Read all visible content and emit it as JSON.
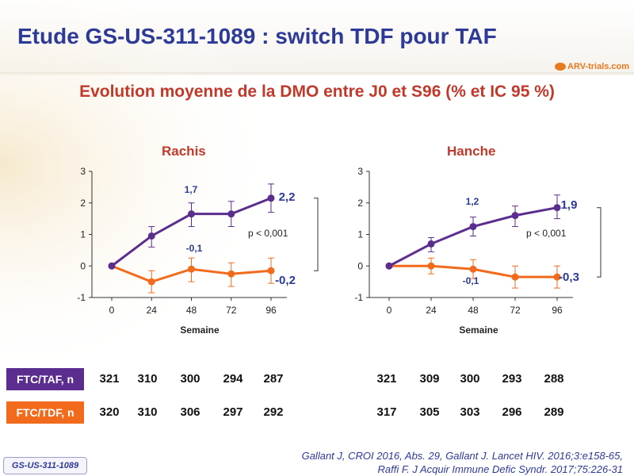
{
  "header": {
    "title": "Etude GS-US-311-1089 : switch TDF pour TAF",
    "logo_text": "ARV-trials.com",
    "subtitle": "Evolution moyenne de la DMO entre J0 et S96 (% et IC 95 %)"
  },
  "colors": {
    "taf": "#5b2d8e",
    "tdf": "#f26b1d",
    "title": "#2e3a97",
    "accent": "#c0392b"
  },
  "chart_data": [
    {
      "type": "line",
      "title": "Rachis",
      "xlabel": "Semaine",
      "ylabel": "",
      "x": [
        0,
        24,
        48,
        72,
        96
      ],
      "ylim": [
        -1,
        3
      ],
      "yticks": [
        -1,
        0,
        1,
        2,
        3
      ],
      "series": [
        {
          "name": "FTC/TAF",
          "color": "#5b2d8e",
          "values": [
            0,
            0.95,
            1.65,
            1.65,
            2.15
          ],
          "ci_low": [
            0,
            0.6,
            1.25,
            1.25,
            1.7
          ],
          "ci_high": [
            0,
            1.25,
            2.0,
            2.05,
            2.6
          ]
        },
        {
          "name": "FTC/TDF",
          "color": "#f26b1d",
          "values": [
            0,
            -0.5,
            -0.1,
            -0.25,
            -0.15
          ],
          "ci_low": [
            0,
            -0.85,
            -0.5,
            -0.65,
            -0.55
          ],
          "ci_high": [
            0,
            -0.15,
            0.25,
            0.1,
            0.25
          ]
        }
      ],
      "annotations": {
        "point_label_taf": "1,7",
        "point_label_tdf": "-0,1",
        "end_label_taf": "2,2",
        "end_label_tdf": "-0,2",
        "pvalue": "p < 0,001"
      }
    },
    {
      "type": "line",
      "title": "Hanche",
      "xlabel": "Semaine",
      "ylabel": "",
      "x": [
        0,
        24,
        48,
        72,
        96
      ],
      "ylim": [
        -1,
        3
      ],
      "yticks": [
        -1,
        0,
        1,
        2,
        3
      ],
      "series": [
        {
          "name": "FTC/TAF",
          "color": "#5b2d8e",
          "values": [
            0,
            0.7,
            1.25,
            1.6,
            1.85
          ],
          "ci_low": [
            0,
            0.45,
            0.95,
            1.25,
            1.5
          ],
          "ci_high": [
            0,
            0.9,
            1.55,
            1.9,
            2.25
          ]
        },
        {
          "name": "FTC/TDF",
          "color": "#f26b1d",
          "values": [
            0,
            0,
            -0.1,
            -0.35,
            -0.35
          ],
          "ci_low": [
            0,
            -0.25,
            -0.4,
            -0.7,
            -0.7
          ],
          "ci_high": [
            0,
            0.25,
            0.2,
            0.0,
            0.0
          ]
        }
      ],
      "annotations": {
        "point_label_taf": "1,2",
        "point_label_tdf": "-0,1",
        "end_label_taf": "1,9",
        "end_label_tdf": "-0,3",
        "pvalue": "p < 0,001"
      }
    }
  ],
  "n_table": {
    "rows": [
      {
        "label": "FTC/TAF, n",
        "rachis": [
          "321",
          "310",
          "300",
          "294",
          "287"
        ],
        "hanche": [
          "321",
          "309",
          "300",
          "293",
          "288"
        ]
      },
      {
        "label": "FTC/TDF, n",
        "rachis": [
          "320",
          "310",
          "306",
          "297",
          "292"
        ],
        "hanche": [
          "317",
          "305",
          "303",
          "296",
          "289"
        ]
      }
    ]
  },
  "footer": {
    "ref_line1": "Gallant J, CROI 2016, Abs. 29, Gallant J. Lancet HIV. 2016;3:e158-65,",
    "ref_line2": "Raffi F. J Acquir Immune Defic Syndr. 2017;75:226-31",
    "badge": "GS-US-311-1089"
  }
}
